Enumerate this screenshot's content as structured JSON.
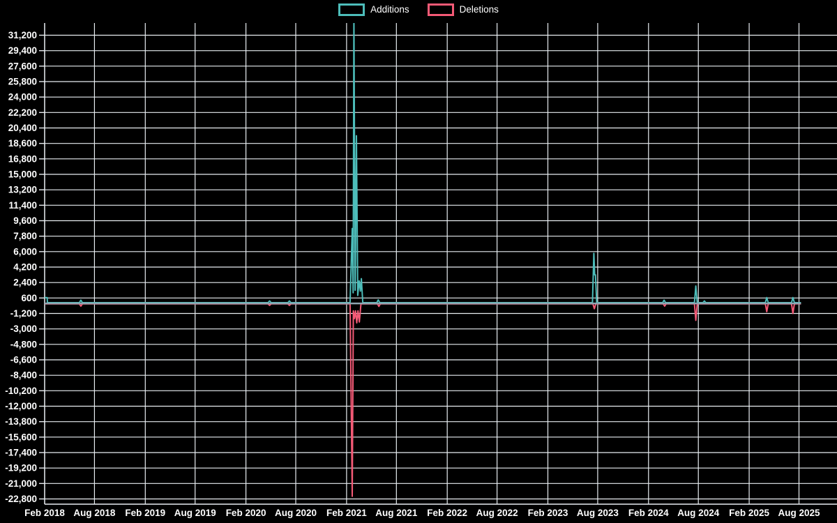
{
  "chart_data": {
    "type": "line",
    "title": "",
    "legend_position": "top-center",
    "background_color": "#000000",
    "grid_color": "#e9eef2",
    "text_color": "#ffffff",
    "baseline_overlay_color": "#8fa6b2",
    "legend": [
      {
        "label": "Additions",
        "color": "#4dbdba"
      },
      {
        "label": "Deletions",
        "color": "#f45a76"
      }
    ],
    "x_axis": {
      "labels": [
        "Feb 2018",
        "Aug 2018",
        "Feb 2019",
        "Aug 2019",
        "Feb 2020",
        "Aug 2020",
        "Feb 2021",
        "Aug 2021",
        "Feb 2022",
        "Aug 2022",
        "Feb 2023",
        "Aug 2023",
        "Feb 2024",
        "Aug 2024",
        "Feb 2025",
        "Aug 2025"
      ],
      "positions": [
        2018.085,
        2018.58,
        2019.085,
        2019.58,
        2020.085,
        2020.58,
        2021.085,
        2021.58,
        2022.085,
        2022.58,
        2023.085,
        2023.58,
        2024.085,
        2024.58,
        2025.085,
        2025.58
      ],
      "start": 2018.085,
      "end": 2025.58
    },
    "y_axis": {
      "tick_step": 1800,
      "tick_values": [
        31200,
        29400,
        27600,
        25800,
        24000,
        22200,
        20400,
        18600,
        16800,
        15000,
        13200,
        11400,
        9600,
        7800,
        6000,
        4200,
        2400,
        600,
        -1200,
        -3000,
        -4800,
        -6600,
        -8400,
        -10200,
        -12000,
        -13800,
        -15600,
        -17400,
        -19200,
        -21000,
        -22800
      ],
      "tick_labels": [
        "31,200",
        "29,400",
        "27,600",
        "25,800",
        "24,000",
        "22,200",
        "20,400",
        "18,600",
        "16,800",
        "15,000",
        "13,200",
        "11,400",
        "9,600",
        "7,800",
        "6,000",
        "4,200",
        "2,400",
        "600",
        "-1,200",
        "-3,000",
        "-4,800",
        "-6,600",
        "-8,400",
        "-10,200",
        "-12,000",
        "-13,800",
        "-15,600",
        "-17,400",
        "-19,200",
        "-21,000",
        "-22,800"
      ],
      "visible_max": 32500,
      "visible_min": -23400,
      "note": "top addition spike is clipped above 31,200"
    },
    "series": [
      {
        "name": "Deletions",
        "color": "#f45a76",
        "points": [
          [
            2018.085,
            -90
          ],
          [
            2018.43,
            -90
          ],
          [
            2018.445,
            -350
          ],
          [
            2018.46,
            -90
          ],
          [
            2020.305,
            -90
          ],
          [
            2020.32,
            -260
          ],
          [
            2020.335,
            -90
          ],
          [
            2020.502,
            -90
          ],
          [
            2020.517,
            -260
          ],
          [
            2020.532,
            -90
          ],
          [
            2021.12,
            -90
          ],
          [
            2021.141,
            -22500
          ],
          [
            2021.152,
            -900
          ],
          [
            2021.163,
            -1800
          ],
          [
            2021.174,
            -900
          ],
          [
            2021.186,
            -2300
          ],
          [
            2021.198,
            -900
          ],
          [
            2021.212,
            -2200
          ],
          [
            2021.228,
            -90
          ],
          [
            2021.392,
            -90
          ],
          [
            2021.406,
            -380
          ],
          [
            2021.42,
            -90
          ],
          [
            2023.533,
            -90
          ],
          [
            2023.547,
            -650
          ],
          [
            2023.561,
            -90
          ],
          [
            2024.231,
            -90
          ],
          [
            2024.245,
            -350
          ],
          [
            2024.259,
            -90
          ],
          [
            2024.541,
            -90
          ],
          [
            2024.555,
            -2000
          ],
          [
            2024.569,
            -90
          ],
          [
            2025.246,
            -90
          ],
          [
            2025.26,
            -1000
          ],
          [
            2025.274,
            -90
          ],
          [
            2025.506,
            -90
          ],
          [
            2025.52,
            -1200
          ],
          [
            2025.534,
            -90
          ],
          [
            2025.6,
            -90
          ]
        ]
      },
      {
        "name": "Additions",
        "color": "#4dbdba",
        "points": [
          [
            2018.085,
            650
          ],
          [
            2018.11,
            650
          ],
          [
            2018.113,
            60
          ],
          [
            2018.43,
            60
          ],
          [
            2018.445,
            350
          ],
          [
            2018.46,
            60
          ],
          [
            2020.305,
            60
          ],
          [
            2020.32,
            260
          ],
          [
            2020.335,
            60
          ],
          [
            2020.502,
            60
          ],
          [
            2020.517,
            260
          ],
          [
            2020.532,
            60
          ],
          [
            2021.12,
            60
          ],
          [
            2021.141,
            8700
          ],
          [
            2021.15,
            1200
          ],
          [
            2021.158,
            34000
          ],
          [
            2021.17,
            1500
          ],
          [
            2021.183,
            19500
          ],
          [
            2021.196,
            900
          ],
          [
            2021.21,
            2600
          ],
          [
            2021.222,
            1400
          ],
          [
            2021.232,
            2850
          ],
          [
            2021.246,
            60
          ],
          [
            2021.386,
            60
          ],
          [
            2021.4,
            380
          ],
          [
            2021.414,
            60
          ],
          [
            2023.528,
            60
          ],
          [
            2023.542,
            5800
          ],
          [
            2023.55,
            3300
          ],
          [
            2023.558,
            3300
          ],
          [
            2023.57,
            60
          ],
          [
            2024.226,
            60
          ],
          [
            2024.24,
            350
          ],
          [
            2024.254,
            60
          ],
          [
            2024.541,
            60
          ],
          [
            2024.555,
            2000
          ],
          [
            2024.569,
            60
          ],
          [
            2024.626,
            60
          ],
          [
            2024.64,
            250
          ],
          [
            2024.654,
            60
          ],
          [
            2025.246,
            60
          ],
          [
            2025.26,
            650
          ],
          [
            2025.274,
            60
          ],
          [
            2025.506,
            60
          ],
          [
            2025.52,
            650
          ],
          [
            2025.534,
            60
          ],
          [
            2025.6,
            60
          ]
        ]
      }
    ]
  }
}
